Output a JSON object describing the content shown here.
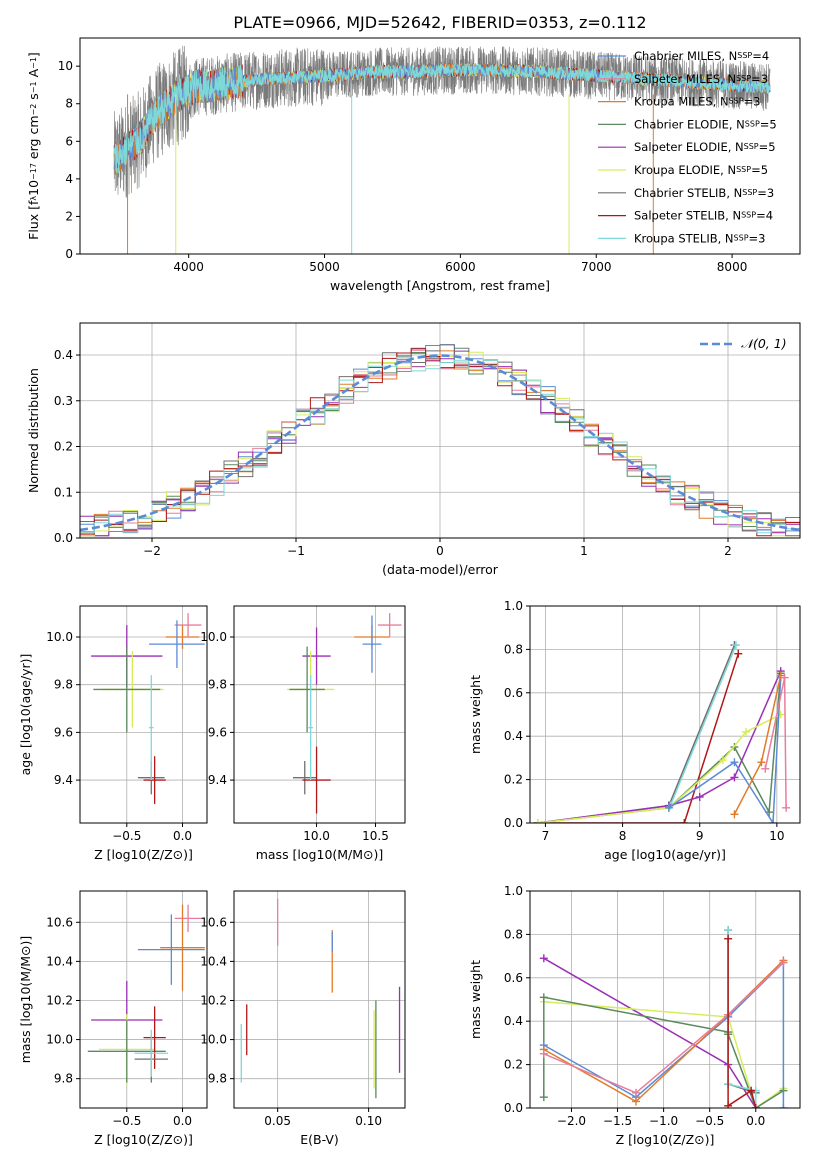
{
  "title": "PLATE=0966, MJD=52642, FIBERID=0353, z=0.112",
  "colors": {
    "chabrier_miles": "#5b8bd6",
    "salpeter_miles": "#e87d9c",
    "kroupa_miles": "#e07b2a",
    "chabrier_elodie": "#5a8a5e",
    "salpeter_elodie": "#9b2fb5",
    "kroupa_elodie": "#d7ec5a",
    "chabrier_stelib": "#707070",
    "salpeter_stelib": "#b01818",
    "kroupa_stelib": "#7fd8d8",
    "gaussian": "#5b8bd6",
    "grid": "#b0b0b0"
  },
  "chart_data": [
    {
      "id": "spectrum",
      "type": "line",
      "title": "PLATE=0966, MJD=52642, FIBERID=0353, z=0.112",
      "xlabel": "wavelength [Angstrom, rest frame]",
      "ylabel_parts": [
        "Flux [f",
        "λ",
        "10",
        "−17",
        " erg cm",
        "−2",
        " s",
        "−1",
        " A",
        "−1",
        "]"
      ],
      "xlim": [
        3200,
        8500
      ],
      "ylim": [
        0,
        11.5
      ],
      "xticks": [
        "4000",
        "5000",
        "6000",
        "7000",
        "8000"
      ],
      "xtick_values": [
        4000,
        5000,
        6000,
        7000,
        8000
      ],
      "yticks": [
        "0",
        "2",
        "4",
        "6",
        "8",
        "10"
      ],
      "ytick_values": [
        0,
        2,
        4,
        6,
        8,
        10
      ],
      "grid": false,
      "legend_position": "right",
      "data_range": [
        3450,
        8280
      ],
      "continuum": {
        "x": [
          3450,
          3550,
          3650,
          3750,
          3850,
          3950,
          4050,
          4200,
          4400,
          4600,
          4800,
          5000,
          5200,
          5400,
          5600,
          5800,
          6000,
          6200,
          6400,
          6600,
          6800,
          7000,
          7200,
          7400,
          7600,
          7800,
          8000,
          8280
        ],
        "y": [
          5.0,
          5.6,
          6.2,
          7.4,
          8.0,
          8.5,
          8.9,
          9.0,
          9.2,
          9.35,
          9.4,
          9.5,
          9.6,
          9.7,
          9.7,
          9.75,
          9.8,
          9.8,
          9.75,
          9.7,
          9.6,
          9.5,
          9.4,
          9.3,
          9.2,
          9.1,
          9.0,
          8.9
        ]
      },
      "spikes": [
        {
          "x": 3550,
          "color": "kroupa_miles"
        },
        {
          "x": 3905,
          "color": "kroupa_elodie"
        },
        {
          "x": 5200,
          "color": "kroupa_stelib"
        },
        {
          "x": 6800,
          "color": "kroupa_elodie"
        },
        {
          "x": 7420,
          "color": "kroupa_miles"
        }
      ],
      "series": [
        {
          "label_parts": [
            "Chabrier MILES, N",
            "SSP",
            "=4"
          ],
          "color": "chabrier_miles"
        },
        {
          "label_parts": [
            "Salpeter MILES, N",
            "SSP",
            "=3"
          ],
          "color": "salpeter_miles"
        },
        {
          "label_parts": [
            "Kroupa MILES, N",
            "SSP",
            "=3"
          ],
          "color": "kroupa_miles"
        },
        {
          "label_parts": [
            "Chabrier ELODIE, N",
            "SSP",
            "=5"
          ],
          "color": "chabrier_elodie"
        },
        {
          "label_parts": [
            "Salpeter ELODIE, N",
            "SSP",
            "=5"
          ],
          "color": "salpeter_elodie"
        },
        {
          "label_parts": [
            "Kroupa ELODIE, N",
            "SSP",
            "=5"
          ],
          "color": "kroupa_elodie"
        },
        {
          "label_parts": [
            "Chabrier STELIB, N",
            "SSP",
            "=3"
          ],
          "color": "chabrier_stelib"
        },
        {
          "label_parts": [
            "Salpeter STELIB, N",
            "SSP",
            "=4"
          ],
          "color": "salpeter_stelib"
        },
        {
          "label_parts": [
            "Kroupa STELIB, N",
            "SSP",
            "=3"
          ],
          "color": "kroupa_stelib"
        }
      ]
    },
    {
      "id": "residuals",
      "type": "line",
      "xlabel": "(data-model)/error",
      "ylabel": "Normed distribution",
      "xlim": [
        -2.5,
        2.5
      ],
      "ylim": [
        0,
        0.47
      ],
      "xticks": [
        "−2",
        "−1",
        "0",
        "1",
        "2"
      ],
      "xtick_values": [
        -2,
        -1,
        0,
        1,
        2
      ],
      "yticks": [
        "0.0",
        "0.1",
        "0.2",
        "0.3",
        "0.4"
      ],
      "ytick_values": [
        0,
        0.1,
        0.2,
        0.3,
        0.4
      ],
      "grid": true,
      "legend_position": "top-right",
      "legend_label": "𝒩(0, 1)",
      "bin_width": 0.1,
      "histogram_series": [
        "chabrier_miles",
        "salpeter_miles",
        "kroupa_miles",
        "chabrier_elodie",
        "salpeter_elodie",
        "kroupa_elodie",
        "chabrier_stelib",
        "salpeter_stelib",
        "kroupa_stelib"
      ],
      "gaussian": {
        "mean": 0,
        "sigma": 1
      }
    },
    {
      "id": "age_vs_z",
      "type": "scatter",
      "xlabel": "Z [log10(Z/Z⊙)]",
      "ylabel": "age  [log10(age/yr)]",
      "xlim": [
        -0.92,
        0.22
      ],
      "ylim": [
        9.22,
        10.13
      ],
      "xticks": [
        "−0.5",
        "0.0"
      ],
      "xtick_values": [
        -0.5,
        0.0
      ],
      "yticks": [
        "9.4",
        "9.6",
        "9.8",
        "10.0"
      ],
      "ytick_values": [
        9.4,
        9.6,
        9.8,
        10.0
      ],
      "grid": true,
      "points": [
        {
          "x": 0.0,
          "y": 10.0,
          "xerr": 0.15,
          "yerr": 0.05,
          "color": "kroupa_miles"
        },
        {
          "x": 0.05,
          "y": 10.05,
          "xerr": 0.12,
          "yerr": 0.05,
          "color": "salpeter_miles"
        },
        {
          "x": -0.05,
          "y": 9.97,
          "xerr": 0.25,
          "yerr": 0.1,
          "color": "chabrier_miles"
        },
        {
          "x": -0.5,
          "y": 9.92,
          "xerr": 0.32,
          "yerr": 0.13,
          "color": "salpeter_elodie"
        },
        {
          "x": -0.45,
          "y": 9.78,
          "xerr": 0.28,
          "yerr": 0.16,
          "color": "kroupa_elodie"
        },
        {
          "x": -0.5,
          "y": 9.78,
          "xerr": 0.3,
          "yerr": 0.18,
          "color": "chabrier_elodie"
        },
        {
          "x": -0.28,
          "y": 9.41,
          "xerr": 0.12,
          "yerr": 0.07,
          "color": "chabrier_stelib"
        },
        {
          "x": -0.25,
          "y": 9.4,
          "xerr": 0.1,
          "yerr": 0.1,
          "color": "salpeter_stelib"
        },
        {
          "x": -0.28,
          "y": 9.62,
          "xerr": 0.02,
          "yerr": 0.22,
          "color": "kroupa_stelib"
        }
      ]
    },
    {
      "id": "age_vs_mass",
      "type": "scatter",
      "xlabel": "mass [log10(M/M⊙)]",
      "ylabel": "",
      "xlim": [
        9.3,
        10.75
      ],
      "ylim": [
        9.22,
        10.13
      ],
      "xticks": [
        "10.0",
        "10.5"
      ],
      "xtick_values": [
        10.0,
        10.5
      ],
      "yticks": [
        "9.4",
        "9.6",
        "9.8",
        "10.0"
      ],
      "ytick_values": [
        9.4,
        9.6,
        9.8,
        10.0
      ],
      "grid": true,
      "points": [
        {
          "x": 10.47,
          "y": 10.0,
          "xerr": 0.15,
          "yerr": 0.05,
          "color": "kroupa_miles"
        },
        {
          "x": 10.62,
          "y": 10.05,
          "xerr": 0.1,
          "yerr": 0.05,
          "color": "salpeter_miles"
        },
        {
          "x": 10.47,
          "y": 9.97,
          "xerr": 0.08,
          "yerr": 0.12,
          "color": "chabrier_miles"
        },
        {
          "x": 10.0,
          "y": 9.92,
          "xerr": 0.12,
          "yerr": 0.12,
          "color": "salpeter_elodie"
        },
        {
          "x": 9.95,
          "y": 9.78,
          "xerr": 0.2,
          "yerr": 0.16,
          "color": "kroupa_elodie"
        },
        {
          "x": 9.92,
          "y": 9.78,
          "xerr": 0.15,
          "yerr": 0.18,
          "color": "chabrier_elodie"
        },
        {
          "x": 9.9,
          "y": 9.41,
          "xerr": 0.1,
          "yerr": 0.07,
          "color": "chabrier_stelib"
        },
        {
          "x": 10.0,
          "y": 9.4,
          "xerr": 0.12,
          "yerr": 0.14,
          "color": "salpeter_stelib"
        },
        {
          "x": 9.95,
          "y": 9.62,
          "xerr": 0.02,
          "yerr": 0.22,
          "color": "kroupa_stelib"
        }
      ]
    },
    {
      "id": "weight_vs_age",
      "type": "line",
      "xlabel": "age  [log10(age/yr)]",
      "ylabel": "mass weight",
      "xlim": [
        6.8,
        10.3
      ],
      "ylim": [
        0,
        1
      ],
      "xticks": [
        "7",
        "8",
        "9",
        "10"
      ],
      "xtick_values": [
        7,
        8,
        9,
        10
      ],
      "yticks": [
        "0.0",
        "0.2",
        "0.4",
        "0.6",
        "0.8",
        "1.0"
      ],
      "ytick_values": [
        0,
        0.2,
        0.4,
        0.6,
        0.8,
        1.0
      ],
      "grid": true,
      "series": [
        {
          "color": "chabrier_stelib",
          "x": [
            6.9,
            8.6,
            9.45
          ],
          "y": [
            0.0,
            0.08,
            0.82
          ]
        },
        {
          "color": "kroupa_stelib",
          "x": [
            6.9,
            8.62,
            9.47
          ],
          "y": [
            0.0,
            0.08,
            0.82
          ]
        },
        {
          "color": "salpeter_stelib",
          "x": [
            6.9,
            8.8,
            9.5
          ],
          "y": [
            0.0,
            0.0,
            0.78
          ]
        },
        {
          "color": "chabrier_elodie",
          "x": [
            6.9,
            8.6,
            9.45,
            9.9,
            10.05
          ],
          "y": [
            0.0,
            0.07,
            0.35,
            0.05,
            0.69
          ]
        },
        {
          "color": "salpeter_elodie",
          "x": [
            6.9,
            8.6,
            9.0,
            9.45,
            10.05
          ],
          "y": [
            0.0,
            0.08,
            0.12,
            0.21,
            0.7
          ]
        },
        {
          "color": "kroupa_elodie",
          "x": [
            6.9,
            8.6,
            9.3,
            9.6,
            10.05
          ],
          "y": [
            0.0,
            0.07,
            0.29,
            0.42,
            0.5
          ]
        },
        {
          "color": "chabrier_miles",
          "x": [
            8.6,
            9.45,
            9.95,
            10.05
          ],
          "y": [
            0.07,
            0.28,
            0.0,
            0.67
          ]
        },
        {
          "color": "kroupa_miles",
          "x": [
            9.45,
            9.8,
            10.05
          ],
          "y": [
            0.04,
            0.28,
            0.68
          ]
        },
        {
          "color": "salpeter_miles",
          "x": [
            9.85,
            10.1,
            10.12
          ],
          "y": [
            0.25,
            0.67,
            0.07
          ]
        }
      ]
    },
    {
      "id": "mass_vs_z",
      "type": "scatter",
      "xlabel": "Z [log10(Z/Z⊙)]",
      "ylabel": "mass [log10(M/M⊙)]",
      "xlim": [
        -0.92,
        0.22
      ],
      "ylim": [
        9.65,
        10.76
      ],
      "xticks": [
        "−0.5",
        "0.0"
      ],
      "xtick_values": [
        -0.5,
        0.0
      ],
      "yticks": [
        "9.8",
        "10.0",
        "10.2",
        "10.4",
        "10.6"
      ],
      "ytick_values": [
        9.8,
        10.0,
        10.2,
        10.4,
        10.6
      ],
      "grid": true,
      "points": [
        {
          "x": 0.05,
          "y": 10.62,
          "xerr": 0.12,
          "yerr": 0.07,
          "color": "salpeter_miles"
        },
        {
          "x": 0.0,
          "y": 10.47,
          "xerr": 0.2,
          "yerr": 0.22,
          "color": "kroupa_miles"
        },
        {
          "x": -0.1,
          "y": 10.46,
          "xerr": 0.3,
          "yerr": 0.18,
          "color": "chabrier_miles"
        },
        {
          "x": -0.5,
          "y": 10.1,
          "xerr": 0.32,
          "yerr": 0.2,
          "color": "salpeter_elodie"
        },
        {
          "x": -0.5,
          "y": 9.95,
          "xerr": 0.25,
          "yerr": 0.18,
          "color": "kroupa_elodie"
        },
        {
          "x": -0.5,
          "y": 9.94,
          "xerr": 0.35,
          "yerr": 0.16,
          "color": "chabrier_elodie"
        },
        {
          "x": -0.25,
          "y": 10.01,
          "xerr": 0.1,
          "yerr": 0.16,
          "color": "salpeter_stelib"
        },
        {
          "x": -0.28,
          "y": 9.9,
          "xerr": 0.15,
          "yerr": 0.12,
          "color": "chabrier_stelib"
        },
        {
          "x": -0.28,
          "y": 9.93,
          "xerr": 0.15,
          "yerr": 0.12,
          "color": "kroupa_stelib"
        }
      ]
    },
    {
      "id": "mass_vs_ebv",
      "type": "scatter",
      "xlabel": "E(B-V)",
      "ylabel": "",
      "xlim": [
        0.026,
        0.12
      ],
      "ylim": [
        9.65,
        10.76
      ],
      "xticks": [
        "0.05",
        "0.10"
      ],
      "xtick_values": [
        0.05,
        0.1
      ],
      "yticks": [
        "9.8",
        "10.0",
        "10.2",
        "10.4",
        "10.6"
      ],
      "ytick_values": [
        9.8,
        10.0,
        10.2,
        10.4,
        10.6
      ],
      "grid": true,
      "points": [
        {
          "x": 0.05,
          "y": 10.6,
          "xerr": 0,
          "yerr": 0.12,
          "color": "salpeter_miles"
        },
        {
          "x": 0.08,
          "y": 10.4,
          "xerr": 0,
          "yerr": 0.16,
          "color": "kroupa_miles"
        },
        {
          "x": 0.08,
          "y": 10.5,
          "xerr": 0,
          "yerr": 0.05,
          "color": "chabrier_miles"
        },
        {
          "x": 0.117,
          "y": 10.05,
          "xerr": 0,
          "yerr": 0.22,
          "color": "salpeter_elodie"
        },
        {
          "x": 0.103,
          "y": 9.95,
          "xerr": 0,
          "yerr": 0.2,
          "color": "kroupa_elodie"
        },
        {
          "x": 0.104,
          "y": 9.95,
          "xerr": 0,
          "yerr": 0.25,
          "color": "chabrier_elodie"
        },
        {
          "x": 0.033,
          "y": 10.05,
          "xerr": 0,
          "yerr": 0.13,
          "color": "salpeter_stelib"
        },
        {
          "x": 0.03,
          "y": 9.93,
          "xerr": 0,
          "yerr": 0.15,
          "color": "kroupa_stelib"
        }
      ]
    },
    {
      "id": "weight_vs_z",
      "type": "line",
      "xlabel": "Z [log10(Z/Z⊙)]",
      "ylabel": "mass weight",
      "xlim": [
        -2.45,
        0.48
      ],
      "ylim": [
        0,
        1
      ],
      "xticks": [
        "−2.0",
        "−1.5",
        "−1.0",
        "−0.5",
        "0.0"
      ],
      "xtick_values": [
        -2.0,
        -1.5,
        -1.0,
        -0.5,
        0.0
      ],
      "yticks": [
        "0.0",
        "0.2",
        "0.4",
        "0.6",
        "0.8",
        "1.0"
      ],
      "ytick_values": [
        0,
        0.2,
        0.4,
        0.6,
        0.8,
        1.0
      ],
      "grid": true,
      "series": [
        {
          "color": "salpeter_elodie",
          "x": [
            -2.3,
            -0.3,
            0.0
          ],
          "y": [
            0.69,
            0.2,
            0.0
          ]
        },
        {
          "color": "kroupa_elodie",
          "x": [
            -2.3,
            -0.3,
            0.0,
            0.3
          ],
          "y": [
            0.49,
            0.42,
            0.0,
            0.09
          ]
        },
        {
          "color": "chabrier_elodie",
          "x": [
            -2.3,
            -2.3,
            -0.3,
            -0.3,
            0.0,
            0.3
          ],
          "y": [
            0.05,
            0.51,
            0.35,
            0.34,
            0.0,
            0.08
          ]
        },
        {
          "color": "chabrier_miles",
          "x": [
            -2.3,
            -1.3,
            -0.3,
            0.3,
            0.3
          ],
          "y": [
            0.29,
            0.05,
            0.42,
            0.67,
            0.0
          ]
        },
        {
          "color": "kroupa_miles",
          "x": [
            -2.3,
            -1.3,
            -0.3,
            0.3
          ],
          "y": [
            0.27,
            0.03,
            0.43,
            0.68
          ]
        },
        {
          "color": "salpeter_miles",
          "x": [
            -2.3,
            -1.3,
            -0.3,
            0.3
          ],
          "y": [
            0.25,
            0.07,
            0.43,
            0.67
          ]
        },
        {
          "color": "chabrier_stelib",
          "x": [
            -0.3,
            -0.3,
            0.0
          ],
          "y": [
            0.82,
            0.11,
            0.07
          ]
        },
        {
          "color": "kroupa_stelib",
          "x": [
            -0.3,
            -0.3,
            0.0,
            0.0
          ],
          "y": [
            0.82,
            0.11,
            0.08,
            0.0
          ]
        },
        {
          "color": "salpeter_stelib",
          "x": [
            -0.3,
            -0.3,
            -0.05,
            0.0
          ],
          "y": [
            0.78,
            0.01,
            0.08,
            0.0
          ]
        }
      ]
    }
  ]
}
